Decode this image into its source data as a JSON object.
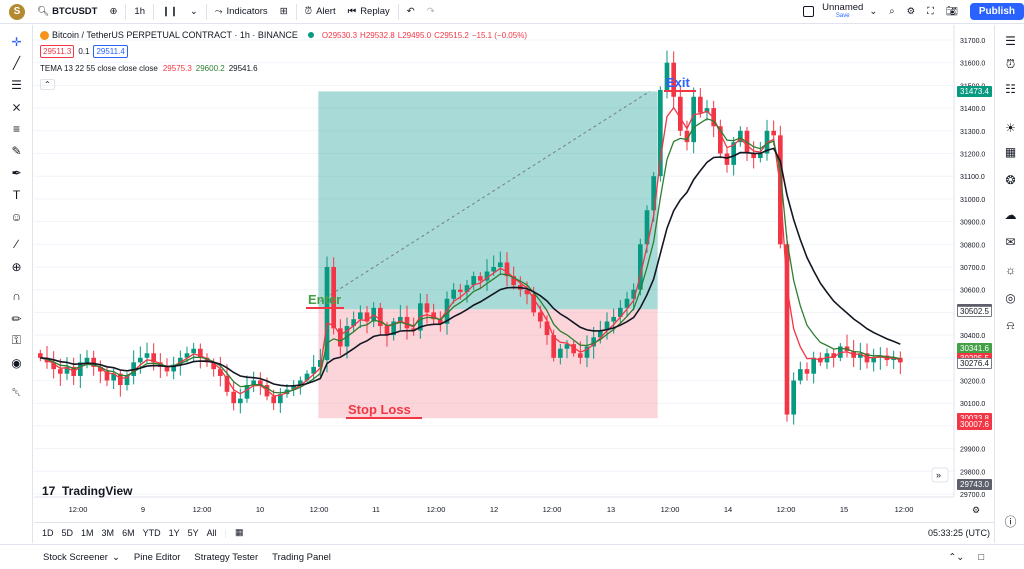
{
  "toolbar": {
    "avatar_letter": "S",
    "symbol": "BTCUSDT",
    "interval": "1h",
    "indicators_label": "Indicators",
    "alert_label": "Alert",
    "replay_label": "Replay",
    "layout_name": "Unnamed",
    "layout_status": "Save",
    "publish_label": "Publish"
  },
  "legend": {
    "title": "Bitcoin / TetherUS PERPETUAL CONTRACT · 1h · BINANCE",
    "ohlc_o": "O29530.3",
    "ohlc_h": "H29532.8",
    "ohlc_l": "L29495.0",
    "ohlc_c": "C29515.2",
    "ohlc_change": "−15.1 (−0.05%)",
    "bid": "29511.3",
    "spread": "0.1",
    "ask": "29511.4",
    "indicator_name": "TEMA 13 22 55 close close close",
    "tema1": "29575.3",
    "tema2": "29600.2",
    "tema3": "29541.6"
  },
  "annotations": {
    "exit": "Exit",
    "enter": "Enter",
    "stop_loss": "Stop Loss"
  },
  "chart_data": {
    "type": "candlestick",
    "symbol": "BTCUSDT",
    "interval": "1h",
    "y_range": [
      29700,
      31750
    ],
    "y_ticks": [
      "31700.0",
      "31600.0",
      "31500.0",
      "31400.0",
      "31300.0",
      "31200.0",
      "31100.0",
      "31000.0",
      "30900.0",
      "30800.0",
      "30700.0",
      "30600.0",
      "30500.0",
      "30400.0",
      "30300.0",
      "30200.0",
      "30100.0",
      "30000.0",
      "29900.0",
      "29800.0",
      "29700.0"
    ],
    "x_ticks": [
      "12:00",
      "9",
      "12:00",
      "10",
      "12:00",
      "11",
      "12:00",
      "12",
      "12:00",
      "13",
      "12:00",
      "14",
      "12:00",
      "15",
      "12:00"
    ],
    "price_tags": [
      {
        "label": "31473.4",
        "color": "#089981"
      },
      {
        "label": "30513.7",
        "color": "#5d606b"
      },
      {
        "label": "30502.5",
        "color": "#ffffff"
      },
      {
        "label": "30341.6",
        "color": "#43a047"
      },
      {
        "label": "30295.5",
        "color": "#f23645"
      },
      {
        "label": "30276.4",
        "color": "#ffffff"
      },
      {
        "label": "30033.8",
        "color": "#f23645"
      },
      {
        "label": "30007.6",
        "color": "#f23645"
      },
      {
        "label": "29743.0",
        "color": "#5d606b"
      }
    ],
    "series": [
      {
        "name": "TEMA 13",
        "color": "#f23645"
      },
      {
        "name": "TEMA 22",
        "color": "#2e7d32"
      },
      {
        "name": "TEMA 55",
        "color": "#131722"
      }
    ],
    "position": {
      "entry": 30513.7,
      "target": 31473.4,
      "stop": 30033.8
    },
    "closes": [
      30300,
      30280,
      30250,
      30230,
      30260,
      30220,
      30280,
      30300,
      30260,
      30240,
      30200,
      30230,
      30180,
      30220,
      30280,
      30300,
      30320,
      30280,
      30260,
      30240,
      30270,
      30300,
      30320,
      30340,
      30300,
      30280,
      30250,
      30220,
      30150,
      30100,
      30120,
      30180,
      30200,
      30180,
      30130,
      30100,
      30140,
      30160,
      30180,
      30200,
      30230,
      30260,
      30290,
      30700,
      30430,
      30350,
      30440,
      30470,
      30500,
      30460,
      30520,
      30440,
      30400,
      30460,
      30480,
      30430,
      30420,
      30540,
      30500,
      30470,
      30450,
      30560,
      30600,
      30590,
      30620,
      30660,
      30640,
      30680,
      30700,
      30720,
      30660,
      30620,
      30600,
      30580,
      30500,
      30460,
      30400,
      30300,
      30340,
      30360,
      30320,
      30300,
      30350,
      30390,
      30420,
      30460,
      30480,
      30520,
      30560,
      30600,
      30800,
      30950,
      31100,
      31480,
      31600,
      31450,
      31300,
      31250,
      31450,
      31380,
      31400,
      31320,
      31200,
      31150,
      31250,
      31300,
      31200,
      31180,
      31200,
      31300,
      31280,
      30800,
      30050,
      30200,
      30250,
      30230,
      30300,
      30280,
      30320,
      30300,
      30350,
      30330,
      30300,
      30320,
      30280,
      30300,
      30310,
      30290,
      30300,
      30280
    ],
    "x_axis_time": "05:33:25 (UTC)",
    "ranges": [
      "1D",
      "5D",
      "1M",
      "3M",
      "6M",
      "YTD",
      "1Y",
      "5Y",
      "All"
    ]
  },
  "bottom": {
    "stock_screener": "Stock Screener",
    "pine_editor": "Pine Editor",
    "strategy_tester": "Strategy Tester",
    "trading_panel": "Trading Panel"
  },
  "branding": {
    "logo_text": "TradingView"
  }
}
